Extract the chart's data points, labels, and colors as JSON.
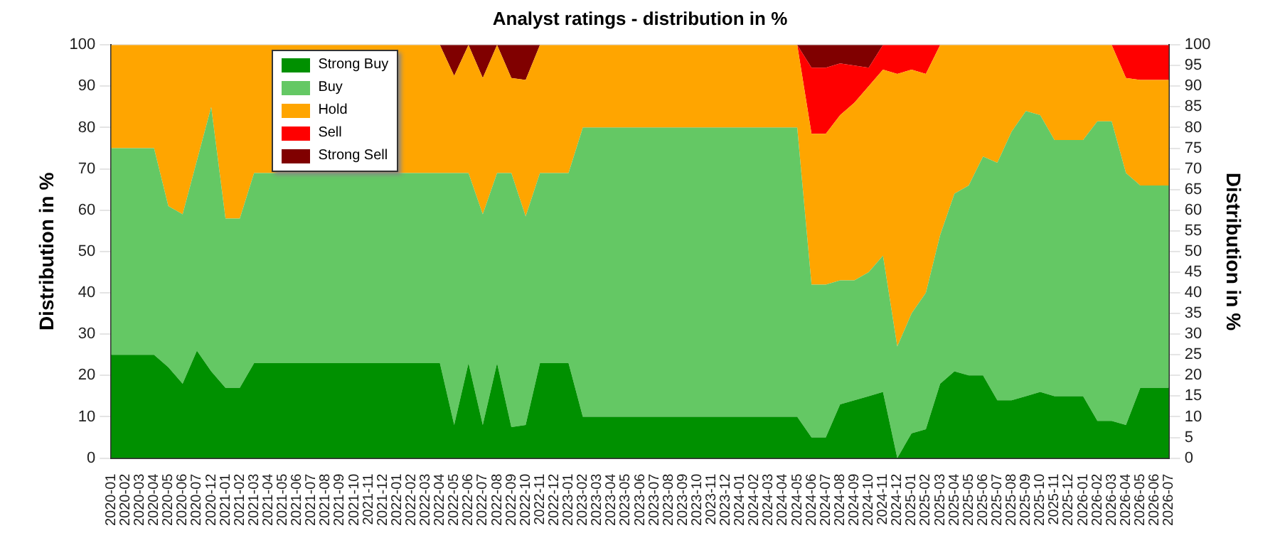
{
  "chart_data": {
    "type": "area",
    "title": "Analyst ratings - distribution in %",
    "ylabel": "Distribution in %",
    "y2label": "Distribution in %",
    "stacked": true,
    "categories": [
      "2020-01",
      "2020-02",
      "2020-03",
      "2020-04",
      "2020-05",
      "2020-06",
      "2020-07",
      "2020-12",
      "2021-01",
      "2021-02",
      "2021-03",
      "2021-04",
      "2021-05",
      "2021-06",
      "2021-07",
      "2021-08",
      "2021-09",
      "2021-10",
      "2021-11",
      "2021-12",
      "2022-01",
      "2022-02",
      "2022-03",
      "2022-04",
      "2022-05",
      "2022-06",
      "2022-07",
      "2022-08",
      "2022-09",
      "2022-10",
      "2022-11",
      "2022-12",
      "2023-01",
      "2023-02",
      "2023-03",
      "2023-04",
      "2023-05",
      "2023-06",
      "2023-07",
      "2023-08",
      "2023-09",
      "2023-10",
      "2023-11",
      "2023-12",
      "2024-01",
      "2024-02",
      "2024-03",
      "2024-04",
      "2024-05",
      "2024-06",
      "2024-07",
      "2024-08",
      "2024-09",
      "2024-10",
      "2024-11",
      "2024-12",
      "2025-01",
      "2025-02",
      "2025-03",
      "2025-04",
      "2025-05",
      "2025-06",
      "2025-07",
      "2025-08",
      "2025-09",
      "2025-10",
      "2025-11",
      "2025-12",
      "2026-01",
      "2026-02",
      "2026-03",
      "2026-04",
      "2026-05",
      "2026-06",
      "2026-07"
    ],
    "series": [
      {
        "name": "Strong Buy",
        "color": "#009000",
        "values": [
          25,
          25,
          25,
          25,
          22,
          18,
          26,
          21,
          17,
          17,
          23,
          23,
          23,
          23,
          23,
          23,
          23,
          23,
          23,
          23,
          23,
          23,
          23,
          23,
          8,
          23,
          8,
          23,
          7.5,
          8,
          23,
          23,
          23,
          10,
          10,
          10,
          10,
          10,
          10,
          10,
          10,
          10,
          10,
          10,
          10,
          10,
          10,
          10,
          10,
          5,
          5,
          13,
          14,
          15,
          16,
          0,
          6,
          7,
          18,
          21,
          20,
          20,
          14,
          14,
          15,
          16,
          15,
          15,
          15,
          9,
          9,
          8,
          17,
          17,
          17
        ]
      },
      {
        "name": "Buy",
        "color": "#64c864",
        "values": [
          50,
          50,
          50,
          50,
          39,
          41,
          46,
          64,
          41,
          41,
          46,
          46,
          46,
          46,
          46,
          46,
          46,
          46,
          46,
          46,
          46,
          46,
          46,
          46,
          61,
          46,
          51,
          46,
          61.5,
          50.5,
          46,
          46,
          46,
          70,
          70,
          70,
          70,
          70,
          70,
          70,
          70,
          70,
          70,
          70,
          70,
          70,
          70,
          70,
          70,
          37,
          37,
          30,
          29,
          30,
          33,
          27,
          29,
          33,
          36,
          43,
          46,
          53,
          57.5,
          65,
          69,
          67,
          62,
          62,
          62,
          72.5,
          72.5,
          61,
          49,
          49,
          49
        ]
      },
      {
        "name": "Hold",
        "color": "#ffa500",
        "values": [
          25,
          25,
          25,
          25,
          39,
          41,
          28,
          15,
          42,
          42,
          31,
          31,
          31,
          31,
          31,
          31,
          31,
          31,
          31,
          31,
          31,
          31,
          31,
          31,
          23.5,
          31,
          33,
          31,
          23,
          33,
          31,
          31,
          31,
          20,
          20,
          20,
          20,
          20,
          20,
          20,
          20,
          20,
          20,
          20,
          20,
          20,
          20,
          20,
          20,
          36.5,
          36.5,
          40,
          43,
          45,
          45,
          66,
          59,
          53,
          46,
          36,
          34,
          27,
          28.5,
          21,
          16,
          17,
          23,
          23,
          23,
          18.5,
          18.5,
          23,
          25.5,
          25.5,
          25.5
        ]
      },
      {
        "name": "Sell",
        "color": "#ff0000",
        "values": [
          0,
          0,
          0,
          0,
          0,
          0,
          0,
          0,
          0,
          0,
          0,
          0,
          0,
          0,
          0,
          0,
          0,
          0,
          0,
          0,
          0,
          0,
          0,
          0,
          0,
          0,
          0,
          0,
          0,
          0,
          0,
          0,
          0,
          0,
          0,
          0,
          0,
          0,
          0,
          0,
          0,
          0,
          0,
          0,
          0,
          0,
          0,
          0,
          0,
          16,
          16,
          12.5,
          9,
          4.5,
          6,
          7,
          6,
          7,
          0,
          0,
          0,
          0,
          0,
          0,
          0,
          0,
          0,
          0,
          0,
          0,
          0,
          8,
          8.5,
          8.5,
          8.5
        ]
      },
      {
        "name": "Strong Sell",
        "color": "#800000",
        "values": [
          0,
          0,
          0,
          0,
          0,
          0,
          0,
          0,
          0,
          0,
          0,
          0,
          0,
          0,
          0,
          0,
          0,
          0,
          0,
          0,
          0,
          0,
          0,
          0,
          7.5,
          0,
          8,
          0,
          8,
          8.5,
          0,
          0,
          0,
          0,
          0,
          0,
          0,
          0,
          0,
          0,
          0,
          0,
          0,
          0,
          0,
          0,
          0,
          0,
          0,
          5.5,
          5.5,
          4.5,
          5,
          5.5,
          0,
          0,
          0,
          0,
          0,
          0,
          0,
          0,
          0,
          0,
          0,
          0,
          0,
          0,
          0,
          0,
          0,
          0,
          0,
          0,
          0
        ]
      }
    ],
    "ylim": [
      0,
      100
    ],
    "yticks": [
      0,
      10,
      20,
      30,
      40,
      50,
      60,
      70,
      80,
      90,
      100
    ],
    "y2lim": [
      0,
      100
    ],
    "y2ticks": [
      0,
      5,
      10,
      15,
      20,
      25,
      30,
      35,
      40,
      45,
      50,
      55,
      60,
      65,
      70,
      75,
      80,
      85,
      90,
      95,
      100
    ],
    "grid": "y",
    "legend": "top left",
    "marker": "none"
  }
}
